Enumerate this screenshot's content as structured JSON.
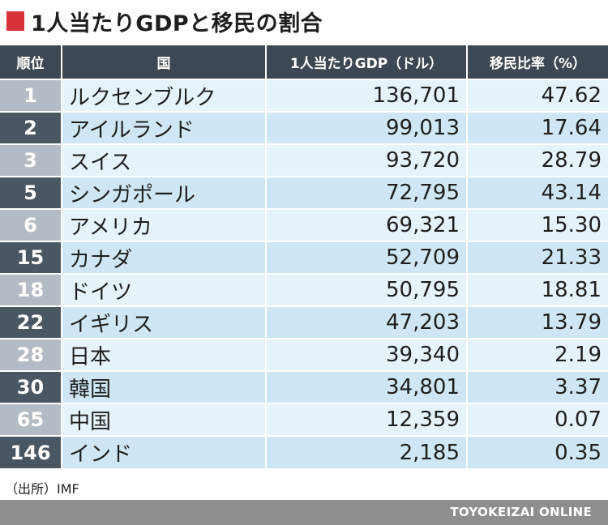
{
  "title": "1人当たりGDPと移民の割合",
  "colors": {
    "title_mark": "#d8333a",
    "header_bg": "#3d4852",
    "rank_light": "#b3bcc4",
    "rank_dark": "#4a5763",
    "row_light": "#e6f3fa",
    "row_dark": "#cfe7f4",
    "footer_bg": "#8e8e8e"
  },
  "chart_data": {
    "type": "table",
    "columns": [
      "順位",
      "国",
      "1人当たりGDP（ドル）",
      "移民比率（%）"
    ],
    "rows": [
      {
        "rank": "1",
        "country": "ルクセンブルク",
        "gdp": "136,701",
        "migrant": "47.62"
      },
      {
        "rank": "2",
        "country": "アイルランド",
        "gdp": "99,013",
        "migrant": "17.64"
      },
      {
        "rank": "3",
        "country": "スイス",
        "gdp": "93,720",
        "migrant": "28.79"
      },
      {
        "rank": "5",
        "country": "シンガポール",
        "gdp": "72,795",
        "migrant": "43.14"
      },
      {
        "rank": "6",
        "country": "アメリカ",
        "gdp": "69,321",
        "migrant": "15.30"
      },
      {
        "rank": "15",
        "country": "カナダ",
        "gdp": "52,709",
        "migrant": "21.33"
      },
      {
        "rank": "18",
        "country": "ドイツ",
        "gdp": "50,795",
        "migrant": "18.81"
      },
      {
        "rank": "22",
        "country": "イギリス",
        "gdp": "47,203",
        "migrant": "13.79"
      },
      {
        "rank": "28",
        "country": "日本",
        "gdp": "39,340",
        "migrant": "2.19"
      },
      {
        "rank": "30",
        "country": "韓国",
        "gdp": "34,801",
        "migrant": "3.37"
      },
      {
        "rank": "65",
        "country": "中国",
        "gdp": "12,359",
        "migrant": "0.07"
      },
      {
        "rank": "146",
        "country": "インド",
        "gdp": "2,185",
        "migrant": "0.35"
      }
    ]
  },
  "source": "（出所）IMF",
  "footer": "TOYOKEIZAI ONLINE"
}
